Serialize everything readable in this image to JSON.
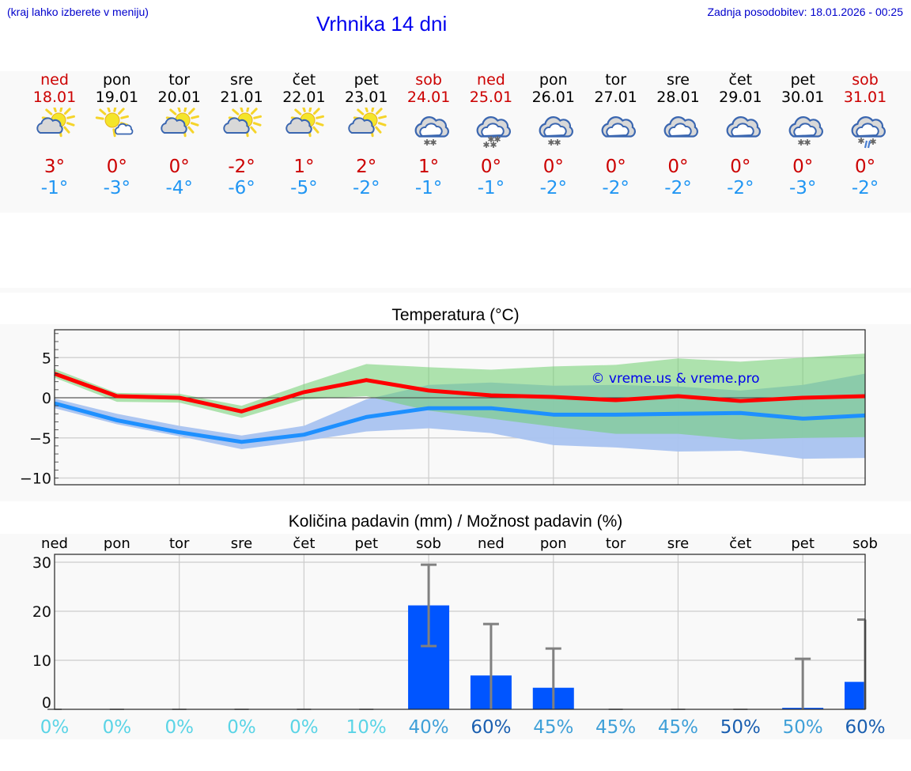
{
  "header": {
    "hint": "(kraj lahko izberete v meniju)",
    "title": "Vrhnika 14 dni",
    "updated": "Zadnja posodobitev: 18.01.2026 - 00:25"
  },
  "days": [
    {
      "name": "ned",
      "date": "18.01",
      "weekend": true,
      "icon": "sun-cloud-icon",
      "tmax": "3°",
      "tmin": "-1°"
    },
    {
      "name": "pon",
      "date": "19.01",
      "weekend": false,
      "icon": "sun-small-cloud-icon",
      "tmax": "0°",
      "tmin": "-3°"
    },
    {
      "name": "tor",
      "date": "20.01",
      "weekend": false,
      "icon": "sun-cloud-icon",
      "tmax": "0°",
      "tmin": "-4°"
    },
    {
      "name": "sre",
      "date": "21.01",
      "weekend": false,
      "icon": "sun-cloud-icon",
      "tmax": "-2°",
      "tmin": "-6°"
    },
    {
      "name": "čet",
      "date": "22.01",
      "weekend": false,
      "icon": "sun-cloud-icon",
      "tmax": "1°",
      "tmin": "-5°"
    },
    {
      "name": "pet",
      "date": "23.01",
      "weekend": false,
      "icon": "sun-cloud-icon",
      "tmax": "2°",
      "tmin": "-2°"
    },
    {
      "name": "sob",
      "date": "24.01",
      "weekend": true,
      "icon": "cloud-light-snow-icon",
      "tmax": "1°",
      "tmin": "-1°"
    },
    {
      "name": "ned",
      "date": "25.01",
      "weekend": true,
      "icon": "cloud-snow-icon",
      "tmax": "0°",
      "tmin": "-1°"
    },
    {
      "name": "pon",
      "date": "26.01",
      "weekend": false,
      "icon": "cloud-light-snow-icon",
      "tmax": "0°",
      "tmin": "-2°"
    },
    {
      "name": "tor",
      "date": "27.01",
      "weekend": false,
      "icon": "cloud-icon",
      "tmax": "0°",
      "tmin": "-2°"
    },
    {
      "name": "sre",
      "date": "28.01",
      "weekend": false,
      "icon": "cloud-icon",
      "tmax": "0°",
      "tmin": "-2°"
    },
    {
      "name": "čet",
      "date": "29.01",
      "weekend": false,
      "icon": "cloud-icon",
      "tmax": "0°",
      "tmin": "-2°"
    },
    {
      "name": "pet",
      "date": "30.01",
      "weekend": false,
      "icon": "cloud-light-snow-icon",
      "tmax": "0°",
      "tmin": "-3°"
    },
    {
      "name": "sob",
      "date": "31.01",
      "weekend": true,
      "icon": "cloud-sleet-icon",
      "tmax": "0°",
      "tmin": "-2°"
    }
  ],
  "colors": {
    "max_line": "#ff0000",
    "min_line": "#1e90ff",
    "max_band": "#a8e6a8",
    "min_band": "#a9c3f0",
    "overlap_band": "#7cc8a8",
    "bar": "#0055ff",
    "error_bar": "#808080",
    "watermark": "#0000ee",
    "pct_light": "#5ad4e6",
    "pct_mid": "#3fa0d8",
    "pct_dark": "#1a5fb0"
  },
  "chart_data": [
    {
      "type": "line",
      "title": "Temperatura (°C)",
      "xlabel": "",
      "ylabel": "",
      "ylim": [
        -10.8,
        8.4
      ],
      "yticks": [
        5,
        0,
        -5,
        -10
      ],
      "ytick_labels": [
        "5",
        "0",
        "−5",
        "−10"
      ],
      "grid": true,
      "x": [
        "18.01",
        "19.01",
        "20.01",
        "21.01",
        "22.01",
        "23.01",
        "24.01",
        "25.01",
        "26.01",
        "27.01",
        "28.01",
        "29.01",
        "30.01",
        "31.01"
      ],
      "watermark": "© vreme.us & vreme.pro",
      "series": [
        {
          "name": "max",
          "values": [
            3.0,
            0.2,
            0.0,
            -1.7,
            0.7,
            2.2,
            0.9,
            0.3,
            0.1,
            -0.3,
            0.2,
            -0.4,
            0.0,
            0.2
          ]
        },
        {
          "name": "min",
          "values": [
            -0.7,
            -2.8,
            -4.3,
            -5.5,
            -4.6,
            -2.4,
            -1.3,
            -1.3,
            -2.1,
            -2.1,
            -2.0,
            -1.9,
            -2.6,
            -2.2
          ]
        }
      ],
      "bands": [
        {
          "name": "max-range",
          "upper": [
            3.6,
            0.6,
            0.5,
            -1.0,
            1.7,
            4.2,
            3.8,
            3.5,
            3.9,
            4.1,
            4.9,
            4.5,
            5.0,
            5.5
          ],
          "lower": [
            2.5,
            -0.5,
            -0.6,
            -2.5,
            -0.2,
            0.2,
            -1.6,
            -2.6,
            -3.6,
            -4.5,
            -4.5,
            -5.2,
            -5.0,
            -4.9
          ]
        },
        {
          "name": "min-range",
          "upper": [
            -0.1,
            -2.0,
            -3.5,
            -4.7,
            -3.5,
            -0.2,
            1.6,
            1.9,
            1.5,
            1.6,
            1.4,
            0.9,
            1.6,
            3.0
          ],
          "lower": [
            -1.3,
            -3.3,
            -4.8,
            -6.4,
            -5.4,
            -4.2,
            -3.8,
            -4.4,
            -5.9,
            -6.2,
            -6.7,
            -6.6,
            -7.6,
            -7.5
          ]
        }
      ]
    },
    {
      "type": "bar",
      "title": "Količina padavin (mm) / Možnost padavin (%)",
      "xlabel": "",
      "ylabel": "",
      "ylim": [
        -1.5,
        31.6
      ],
      "yticks": [
        0,
        10,
        20,
        30
      ],
      "grid": true,
      "categories": [
        "ned",
        "pon",
        "tor",
        "sre",
        "čet",
        "pet",
        "sob",
        "ned",
        "pon",
        "tor",
        "sre",
        "čet",
        "pet",
        "sob"
      ],
      "values": [
        0,
        0,
        0,
        0,
        0,
        0,
        21.2,
        6.9,
        4.4,
        0,
        0,
        0,
        0.3,
        5.6
      ],
      "error_low": [
        0,
        0,
        0,
        0,
        0,
        0,
        12.9,
        0,
        0,
        0,
        0,
        0,
        0,
        0
      ],
      "error_high": [
        0,
        0,
        0,
        0,
        0,
        0,
        29.5,
        17.4,
        12.4,
        0,
        0,
        0,
        10.3,
        18.3
      ],
      "probability": [
        "0%",
        "0%",
        "0%",
        "0%",
        "0%",
        "10%",
        "40%",
        "60%",
        "45%",
        "45%",
        "45%",
        "50%",
        "50%",
        "60%"
      ],
      "probability_shade": [
        "light",
        "light",
        "light",
        "light",
        "light",
        "light",
        "mid",
        "dark",
        "mid",
        "mid",
        "mid",
        "dark",
        "mid",
        "dark"
      ]
    }
  ]
}
